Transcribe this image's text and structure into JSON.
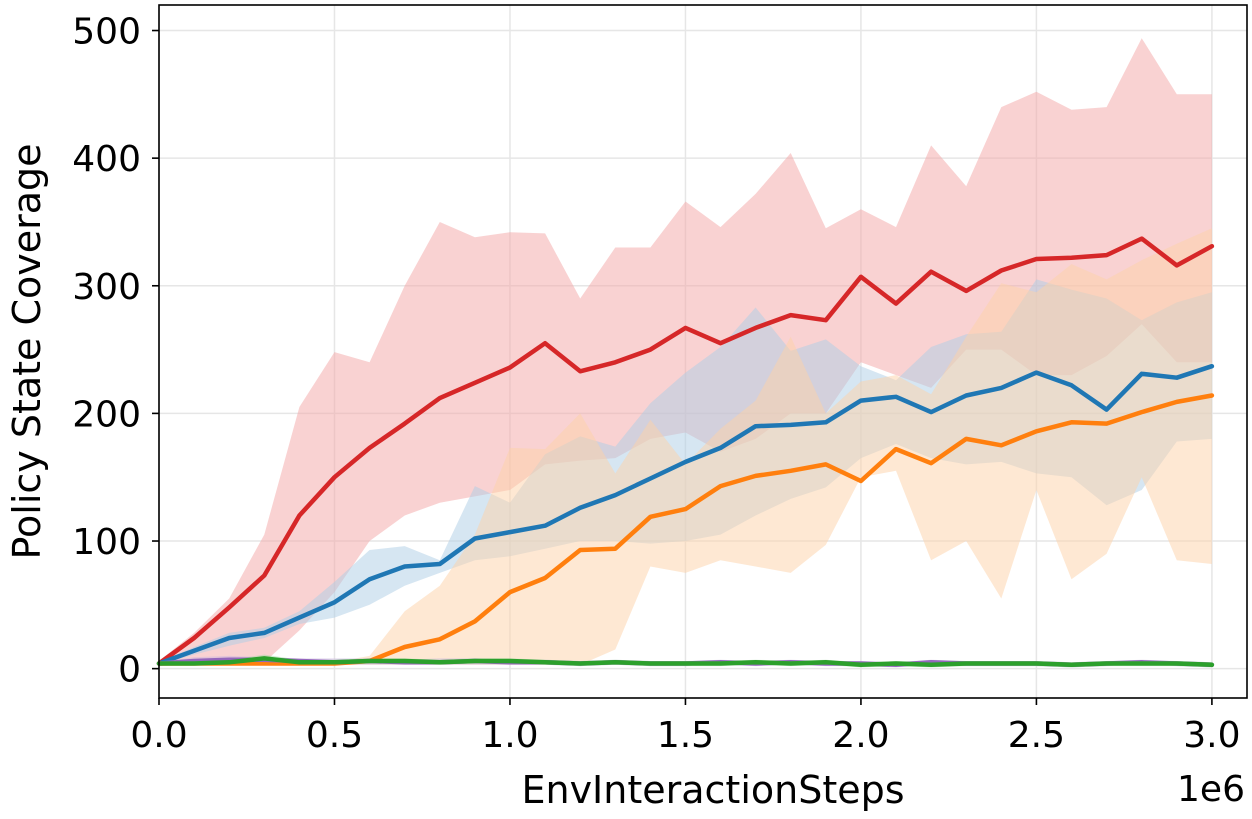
{
  "chart_data": {
    "type": "line",
    "xlabel": "EnvInteractionSteps",
    "ylabel": "Policy State Coverage",
    "x_offset_label": "1e6",
    "xlim": [
      0,
      3.1
    ],
    "ylim": [
      -23,
      520
    ],
    "xticks": [
      0.0,
      0.5,
      1.0,
      1.5,
      2.0,
      2.5,
      3.0
    ],
    "xtick_labels": [
      "0.0",
      "0.5",
      "1.0",
      "1.5",
      "2.0",
      "2.5",
      "3.0"
    ],
    "yticks": [
      0,
      100,
      200,
      300,
      400,
      500
    ],
    "ytick_labels": [
      "0",
      "100",
      "200",
      "300",
      "400",
      "500"
    ],
    "grid": true,
    "legend": "none",
    "x": [
      0.0,
      0.1,
      0.2,
      0.3,
      0.4,
      0.5,
      0.6,
      0.7,
      0.8,
      0.9,
      1.0,
      1.1,
      1.2,
      1.3,
      1.4,
      1.5,
      1.6,
      1.7,
      1.8,
      1.9,
      2.0,
      2.1,
      2.2,
      2.3,
      2.4,
      2.5,
      2.6,
      2.7,
      2.8,
      2.9,
      3.0
    ],
    "series": [
      {
        "color": "#d62728",
        "band_color": "#f4a6a6",
        "values": [
          4,
          24,
          48,
          73,
          120,
          150,
          173,
          192,
          212,
          224,
          236,
          255,
          233,
          240,
          250,
          267,
          255,
          267,
          277,
          273,
          307,
          286,
          311,
          296,
          312,
          321,
          322,
          324,
          337,
          316,
          331
        ],
        "upper": [
          6,
          28,
          55,
          105,
          205,
          248,
          240,
          300,
          350,
          338,
          342,
          341,
          290,
          330,
          330,
          366,
          346,
          372,
          404,
          345,
          360,
          346,
          410,
          378,
          440,
          452,
          438,
          440,
          494,
          450,
          450
        ],
        "lower": [
          2,
          5,
          5,
          5,
          30,
          60,
          100,
          120,
          130,
          135,
          140,
          160,
          163,
          165,
          180,
          185,
          170,
          180,
          200,
          200,
          240,
          230,
          220,
          250,
          250,
          230,
          230,
          245,
          270,
          240,
          240
        ]
      },
      {
        "color": "#1f77b4",
        "band_color": "#aecde6",
        "values": [
          4,
          14,
          24,
          28,
          40,
          52,
          70,
          80,
          82,
          102,
          107,
          112,
          126,
          136,
          149,
          162,
          173,
          190,
          191,
          193,
          210,
          213,
          201,
          214,
          220,
          232,
          222,
          203,
          231,
          228,
          237
        ],
        "upper": [
          5,
          17,
          28,
          32,
          45,
          68,
          93,
          96,
          85,
          143,
          130,
          168,
          182,
          174,
          208,
          232,
          252,
          283,
          249,
          258,
          237,
          226,
          252,
          262,
          264,
          305,
          297,
          290,
          273,
          287,
          295
        ],
        "lower": [
          3,
          11,
          18,
          24,
          35,
          40,
          50,
          65,
          75,
          85,
          88,
          94,
          100,
          100,
          98,
          100,
          105,
          120,
          133,
          142,
          165,
          176,
          165,
          160,
          162,
          153,
          150,
          128,
          140,
          178,
          180
        ]
      },
      {
        "color": "#ff7f0e",
        "band_color": "#fed2a8",
        "values": [
          4,
          4,
          4,
          4,
          4,
          4,
          6,
          17,
          23,
          37,
          60,
          71,
          93,
          94,
          119,
          125,
          143,
          151,
          155,
          160,
          147,
          172,
          161,
          180,
          175,
          186,
          193,
          192,
          201,
          209,
          214
        ],
        "upper": [
          5,
          5,
          5,
          5,
          5,
          5,
          10,
          45,
          65,
          105,
          173,
          172,
          200,
          153,
          195,
          160,
          188,
          210,
          260,
          200,
          225,
          230,
          215,
          260,
          302,
          295,
          317,
          305,
          320,
          333,
          345
        ],
        "lower": [
          3,
          3,
          3,
          3,
          3,
          3,
          3,
          3,
          3,
          3,
          3,
          3,
          3,
          15,
          80,
          75,
          85,
          80,
          75,
          97,
          150,
          155,
          85,
          100,
          55,
          140,
          70,
          90,
          150,
          85,
          82
        ]
      },
      {
        "color": "#9467bd",
        "band_color": "#cbb5de",
        "values": [
          4,
          6,
          7,
          7,
          6,
          5,
          6,
          5,
          5,
          6,
          5,
          5,
          4,
          5,
          4,
          4,
          5,
          4,
          5,
          4,
          4,
          3,
          5,
          4,
          4,
          4,
          3,
          4,
          5,
          4,
          3
        ],
        "upper": [
          5,
          9,
          10,
          9,
          8,
          8,
          8,
          7,
          8,
          8,
          7,
          7,
          6,
          7,
          6,
          6,
          7,
          6,
          7,
          6,
          6,
          5,
          7,
          6,
          6,
          6,
          5,
          6,
          7,
          6,
          5
        ],
        "lower": [
          2,
          3,
          4,
          4,
          3,
          3,
          3,
          3,
          3,
          3,
          3,
          3,
          2,
          3,
          2,
          2,
          3,
          2,
          3,
          2,
          2,
          1,
          3,
          2,
          2,
          2,
          1,
          2,
          3,
          2,
          1
        ]
      },
      {
        "color": "#2ca02c",
        "band_color": "#a6d9a6",
        "values": [
          4,
          4,
          5,
          8,
          5,
          5,
          6,
          6,
          5,
          6,
          6,
          5,
          4,
          5,
          4,
          4,
          4,
          5,
          4,
          5,
          3,
          4,
          3,
          4,
          4,
          4,
          3,
          4,
          4,
          4,
          3
        ],
        "upper": [
          5,
          6,
          7,
          11,
          7,
          7,
          8,
          8,
          7,
          8,
          8,
          7,
          6,
          7,
          6,
          6,
          6,
          7,
          6,
          7,
          5,
          6,
          5,
          6,
          6,
          6,
          5,
          6,
          6,
          6,
          5
        ],
        "lower": [
          3,
          3,
          3,
          5,
          3,
          3,
          4,
          4,
          3,
          4,
          4,
          3,
          2,
          3,
          2,
          2,
          2,
          3,
          2,
          3,
          1,
          2,
          1,
          2,
          2,
          2,
          1,
          2,
          2,
          2,
          1
        ]
      }
    ]
  }
}
